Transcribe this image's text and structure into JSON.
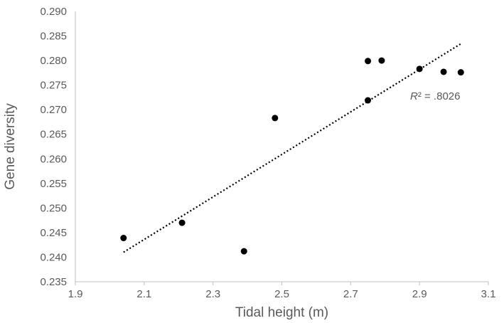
{
  "chart_data": {
    "type": "scatter",
    "title": "",
    "xlabel": "Tidal height (m)",
    "ylabel": "Gene diversity",
    "xlim": [
      1.9,
      3.1
    ],
    "ylim": [
      0.235,
      0.29
    ],
    "x_ticks": [
      "1.9",
      "2.1",
      "2.3",
      "2.5",
      "2.7",
      "2.9",
      "3.1"
    ],
    "y_ticks": [
      "0.235",
      "0.240",
      "0.245",
      "0.250",
      "0.255",
      "0.260",
      "0.265",
      "0.270",
      "0.275",
      "0.280",
      "0.285",
      "0.290"
    ],
    "grid": false,
    "legend": "none",
    "point_color": "#000000",
    "trendline": {
      "style": "dotted",
      "x": [
        2.04,
        3.02
      ],
      "y": [
        0.241,
        0.2834
      ],
      "r_squared_label": "R² = .8026"
    },
    "series": [
      {
        "x": [
          2.04,
          2.21,
          2.39,
          2.48,
          2.75,
          2.75,
          2.79,
          2.9,
          2.97,
          3.02
        ],
        "y": [
          0.2439,
          0.247,
          0.2412,
          0.2683,
          0.2799,
          0.2719,
          0.28,
          0.2783,
          0.2777,
          0.2776
        ]
      }
    ]
  }
}
